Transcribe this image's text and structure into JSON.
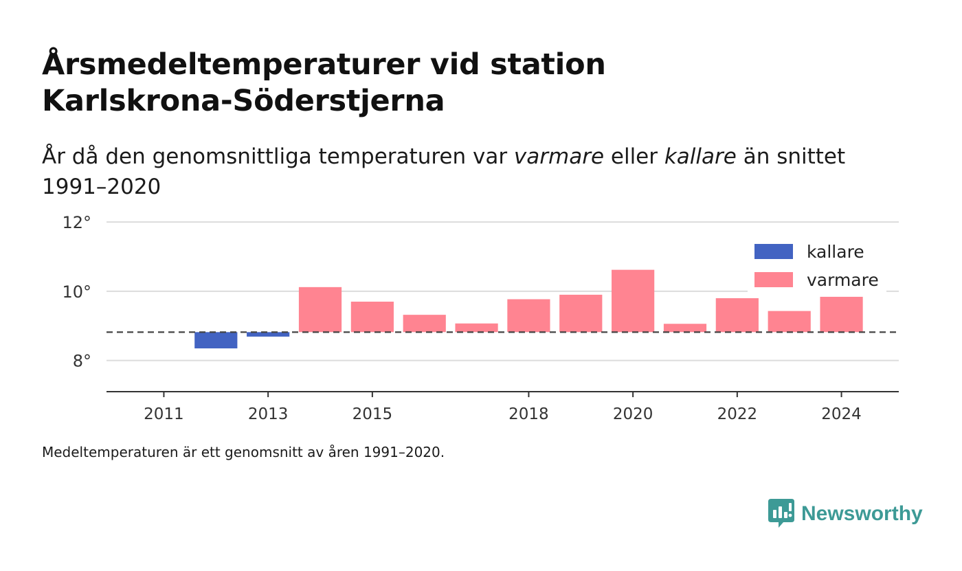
{
  "title": "Årsmedeltemperaturer vid station Karlskrona-Söderstjerna",
  "subtitle": {
    "part1": "År då den genomsnittliga temperaturen var ",
    "warm_word": "varmare",
    "part2": " eller ",
    "cold_word": "kallare",
    "part3": " än snittet 1991–2020"
  },
  "footnote": "Medeltemperaturen är ett genomsnitt av åren 1991–2020.",
  "brand": {
    "name": "Newsworthy",
    "icon": "newsworthy-logo-icon",
    "color": "#3d9a96"
  },
  "chart_data": {
    "type": "bar",
    "title": "Årsmedeltemperaturer vid station Karlskrona-Söderstjerna",
    "xlabel": "",
    "ylabel": "",
    "baseline": 8.82,
    "baseline_style": "dashed",
    "x": [
      2012,
      2013,
      2014,
      2015,
      2016,
      2017,
      2018,
      2019,
      2020,
      2021,
      2022,
      2023,
      2024
    ],
    "values": [
      8.35,
      8.69,
      10.12,
      9.7,
      9.32,
      9.07,
      9.77,
      9.9,
      10.62,
      9.06,
      9.8,
      9.43,
      9.84
    ],
    "xticks": [
      2011,
      2013,
      2015,
      2018,
      2020,
      2022,
      2024
    ],
    "xlim": [
      2009.9,
      2025.1
    ],
    "ylim": [
      7.1,
      12.3
    ],
    "yticks": [
      8,
      10,
      12
    ],
    "ytick_labels": [
      "8°",
      "10°",
      "12°"
    ],
    "grid": true,
    "legend_position": "top-right",
    "legend": [
      {
        "name": "kallare",
        "color": "#4263c2"
      },
      {
        "name": "varmare",
        "color": "#ff8491"
      }
    ],
    "colors": {
      "cold": "#4263c2",
      "warm": "#ff8491"
    }
  }
}
